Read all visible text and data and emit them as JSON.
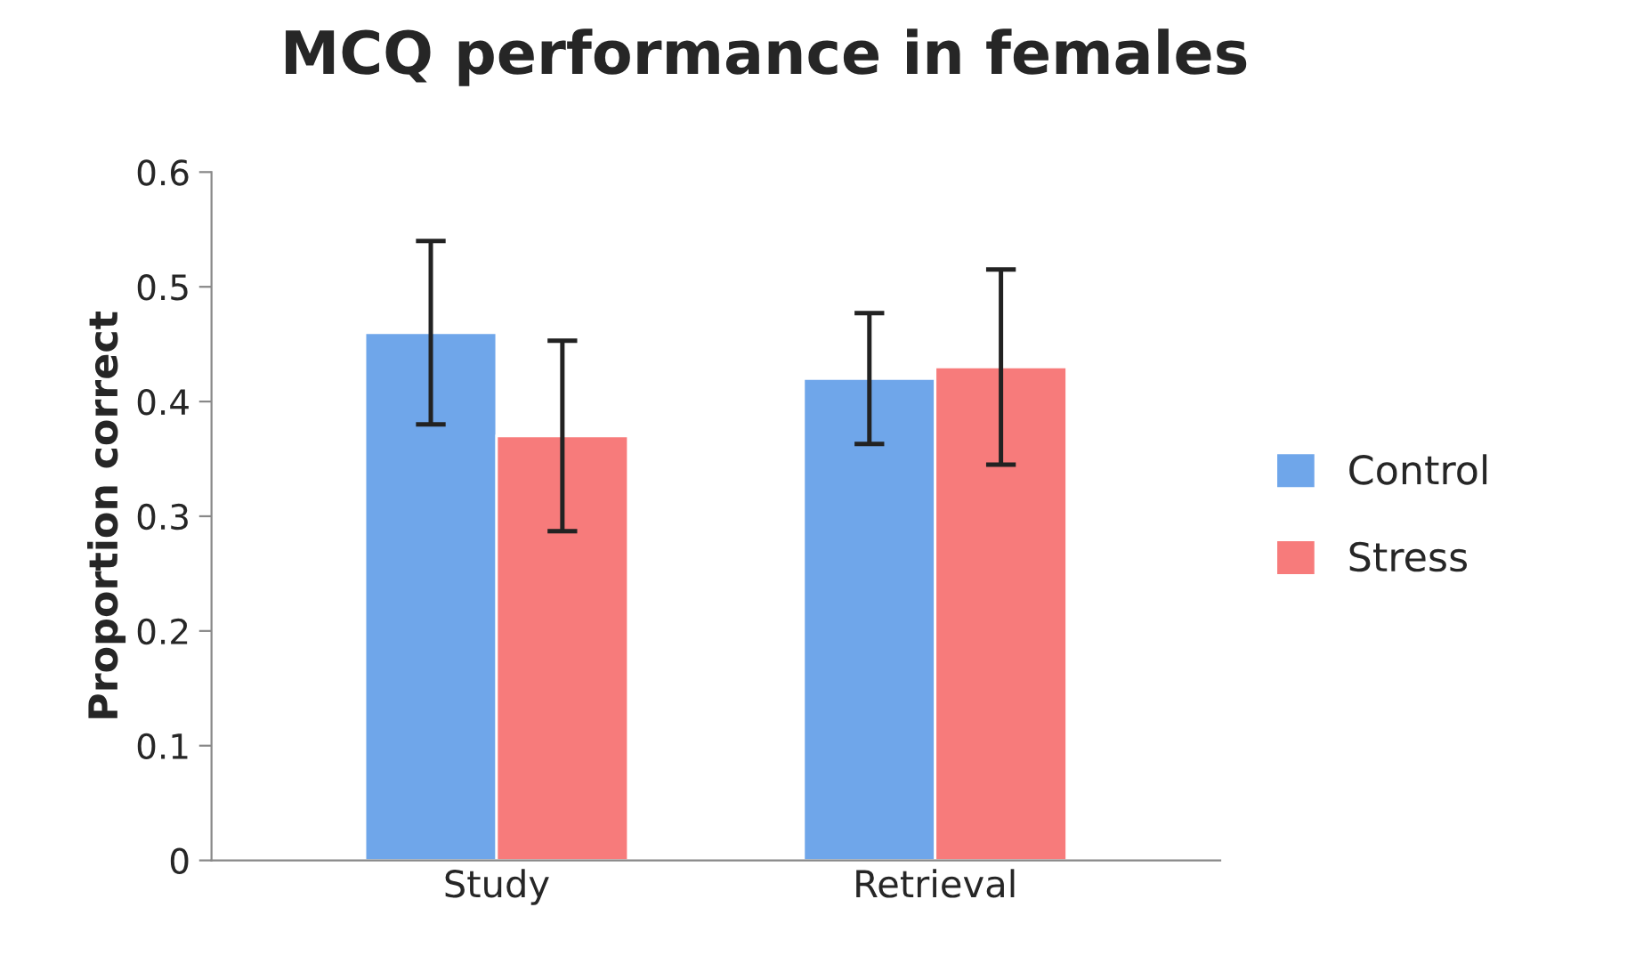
{
  "chart_data": {
    "type": "bar",
    "title": "MCQ performance in females",
    "ylabel": "Proportion correct",
    "categories": [
      "Study",
      "Retrieval"
    ],
    "series": [
      {
        "name": "Control",
        "color": "#6fa6ea",
        "values": [
          0.46,
          0.42
        ],
        "errors": [
          0.08,
          0.057
        ]
      },
      {
        "name": "Stress",
        "color": "#f77b7b",
        "values": [
          0.37,
          0.43
        ],
        "errors": [
          0.083,
          0.085
        ]
      }
    ],
    "ylim": [
      0,
      0.6
    ],
    "yticks": [
      0,
      0.1,
      0.2,
      0.3,
      0.4,
      0.5,
      0.6
    ],
    "grid": false,
    "legend": "right"
  }
}
